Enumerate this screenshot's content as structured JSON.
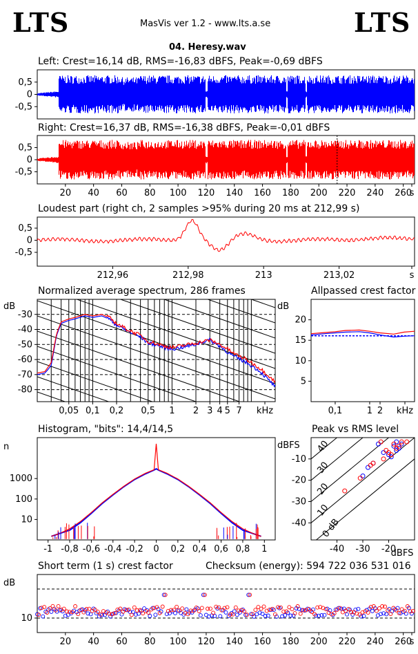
{
  "header": {
    "logo_left": "LTS",
    "logo_right": "LTS",
    "app_title": "MasVis ver 1.2 - www.lts.a.se",
    "filename": "04. Heresy.wav"
  },
  "chart_data": [
    {
      "type": "line",
      "title": "Left: Crest=16,14 dB, RMS=-16,83 dBFS, Peak=-0,69 dBFS",
      "series": [
        {
          "name": "",
          "color": "#0000ff"
        }
      ],
      "ylim": [
        -1,
        1
      ],
      "y_ticks": [
        "0,5",
        "0",
        "-0,5"
      ],
      "x_range_s": [
        0,
        268
      ]
    },
    {
      "type": "line",
      "title": "Right: Crest=16,37 dB, RMS=-16,38 dBFS, Peak=-0,01 dBFS",
      "series": [
        {
          "name": "",
          "color": "#ff0000"
        }
      ],
      "ylim": [
        -1,
        1
      ],
      "y_ticks": [
        "0,5",
        "0",
        "-0,5"
      ],
      "x_ticks": [
        "20",
        "40",
        "60",
        "80",
        "100",
        "120",
        "140",
        "160",
        "180",
        "200",
        "220",
        "240",
        "260",
        "s"
      ],
      "x_range_s": [
        0,
        268
      ],
      "marker_s": 212.99
    },
    {
      "type": "line",
      "title": "Loudest part (right ch, 2 samples >95% during 20 ms at 212,99 s)",
      "series": [
        {
          "name": "",
          "color": "#ff0000"
        }
      ],
      "ylim": [
        -1,
        1
      ],
      "y_ticks": [
        "0,5",
        "0",
        "-0,5"
      ],
      "x_ticks": [
        "212,96",
        "212,98",
        "213",
        "213,02",
        "s"
      ],
      "x_range_s": [
        212.94,
        213.04
      ]
    },
    {
      "type": "line",
      "title": "Normalized average spectrum, 286 frames",
      "ylabel": "dB",
      "y_ticks": [
        "-30",
        "-40",
        "-50",
        "-60",
        "-70",
        "-80"
      ],
      "x_ticks": [
        "0,05",
        "0,1",
        "0,2",
        "0,5",
        "1",
        "2",
        "3",
        "4",
        "5",
        "7",
        "kHz"
      ],
      "x_range_khz": [
        0.02,
        20
      ],
      "ylim": [
        -88,
        -20
      ],
      "x_scale": "log",
      "points_khz": [
        0.02,
        0.025,
        0.03,
        0.035,
        0.04,
        0.05,
        0.06,
        0.08,
        0.1,
        0.13,
        0.16,
        0.2,
        0.25,
        0.3,
        0.4,
        0.5,
        0.6,
        0.8,
        1,
        1.3,
        1.6,
        2,
        2.5,
        3,
        4,
        5,
        6,
        8,
        10,
        13,
        16,
        20
      ],
      "series": [
        {
          "name": "",
          "color": "#0000ff",
          "values": [
            -70,
            -69,
            -64,
            -44,
            -36,
            -34,
            -33,
            -31,
            -32,
            -31,
            -33,
            -37,
            -40,
            -42,
            -45,
            -49,
            -50,
            -52,
            -53,
            -52,
            -51,
            -50,
            -48,
            -47,
            -51,
            -55,
            -58,
            -61,
            -64,
            -68,
            -73,
            -78
          ]
        },
        {
          "name": "",
          "color": "#ff0000",
          "values": [
            -69,
            -68,
            -62,
            -43,
            -35,
            -33,
            -32,
            -30,
            -31,
            -30,
            -32,
            -36,
            -39,
            -41,
            -44,
            -48,
            -49,
            -51,
            -52,
            -51,
            -50,
            -49,
            -48,
            -47,
            -50,
            -53,
            -56,
            -59,
            -62,
            -66,
            -70,
            -75
          ]
        }
      ]
    },
    {
      "type": "line",
      "title": "Allpassed crest factor",
      "ylabel": "dB",
      "y_ticks": [
        "20",
        "15",
        "10",
        "5"
      ],
      "x_ticks": [
        "0,1",
        "1",
        "2",
        "kHz"
      ],
      "ylim": [
        0,
        25
      ],
      "x_range_khz": [
        0.02,
        20
      ],
      "x_scale": "log",
      "points_khz": [
        0.02,
        0.05,
        0.1,
        0.2,
        0.5,
        1,
        2,
        5,
        10,
        20
      ],
      "reference_db": 16.1,
      "series": [
        {
          "name": "",
          "color": "#0000ff",
          "values": [
            16.3,
            16.6,
            16.8,
            17,
            17.1,
            16.8,
            16.3,
            15.8,
            16,
            16.1
          ]
        },
        {
          "name": "",
          "color": "#ff0000",
          "values": [
            16.6,
            16.9,
            17.1,
            17.4,
            17.5,
            17.2,
            16.8,
            16.5,
            17,
            17.2
          ]
        }
      ]
    },
    {
      "type": "line",
      "title": "Histogram, \"bits\": 14,4/14,5",
      "ylabel": "n",
      "y_ticks": [
        "1000",
        "100",
        "10"
      ],
      "x_ticks": [
        "-1",
        "-0,8",
        "-0,6",
        "-0,4",
        "-0,2",
        "0",
        "0,2",
        "0,4",
        "0,6",
        "0,8",
        "1"
      ],
      "y_scale": "log",
      "ylim": [
        1,
        100000
      ],
      "x_range": [
        -1.1,
        1.1
      ],
      "points_x": [
        -0.97,
        -0.9,
        -0.8,
        -0.7,
        -0.6,
        -0.5,
        -0.4,
        -0.3,
        -0.2,
        -0.1,
        -0.02,
        0,
        0.02,
        0.1,
        0.2,
        0.3,
        0.4,
        0.5,
        0.6,
        0.7,
        0.8,
        0.9,
        0.97
      ],
      "series": [
        {
          "name": "",
          "color": "#0000ff",
          "values": [
            1.5,
            2,
            3,
            7,
            20,
            60,
            160,
            400,
            900,
            1700,
            2600,
            3000,
            2600,
            1700,
            900,
            400,
            160,
            60,
            20,
            7,
            3,
            2,
            1.5
          ]
        },
        {
          "name": "",
          "color": "#ff0000",
          "values": [
            1.5,
            2,
            3.5,
            8,
            22,
            65,
            170,
            420,
            950,
            1800,
            2700,
            50000,
            2700,
            1800,
            950,
            420,
            170,
            65,
            22,
            8,
            3.5,
            2,
            1.5
          ]
        }
      ]
    },
    {
      "type": "scatter",
      "title": "Peak vs RMS level",
      "ylabel": "dBFS",
      "xlabel": "dBFS",
      "y_ticks": [
        "-10",
        "-20",
        "-30",
        "-40"
      ],
      "x_ticks": [
        "-40",
        "-30",
        "-20"
      ],
      "xlim": [
        -50,
        -10
      ],
      "ylim": [
        -48,
        0
      ],
      "crest_labels": [
        "40",
        "30",
        "20",
        "10",
        "0 dB"
      ],
      "series": [
        {
          "name": "",
          "color": "#0000ff",
          "points": [
            [
              -24,
              -3
            ],
            [
              -18,
              -4
            ],
            [
              -17,
              -6
            ],
            [
              -20,
              -8
            ],
            [
              -22,
              -7
            ],
            [
              -16,
              -5
            ],
            [
              -19,
              -9
            ],
            [
              -28,
              -14
            ],
            [
              -30,
              -18
            ],
            [
              -26,
              -12
            ],
            [
              -15,
              -3
            ],
            [
              -17,
              -2
            ]
          ]
        },
        {
          "name": "",
          "color": "#ff0000",
          "points": [
            [
              -23,
              -2
            ],
            [
              -18,
              -3
            ],
            [
              -17,
              -5
            ],
            [
              -20,
              -7
            ],
            [
              -21,
              -6
            ],
            [
              -16,
              -4
            ],
            [
              -19,
              -8
            ],
            [
              -27,
              -13
            ],
            [
              -31,
              -19
            ],
            [
              -26,
              -12
            ],
            [
              -15,
              -2
            ],
            [
              -37,
              -25
            ],
            [
              -22,
              -10
            ],
            [
              -13,
              -2
            ]
          ]
        }
      ]
    },
    {
      "type": "scatter",
      "title": "Short term (1 s) crest factor",
      "annotation": "Checksum (energy):   594 722 036 531 016",
      "ylabel": "dB",
      "y_ticks": [
        "10"
      ],
      "x_ticks": [
        "20",
        "40",
        "60",
        "80",
        "100",
        "120",
        "140",
        "160",
        "180",
        "200",
        "220",
        "240",
        "260",
        "s"
      ],
      "x_range_s": [
        0,
        268
      ],
      "ylim": [
        5,
        25
      ],
      "ref_lines_db": [
        20,
        10
      ],
      "series": [
        {
          "name": "",
          "color": "#0000ff"
        },
        {
          "name": "",
          "color": "#ff0000"
        }
      ]
    }
  ]
}
